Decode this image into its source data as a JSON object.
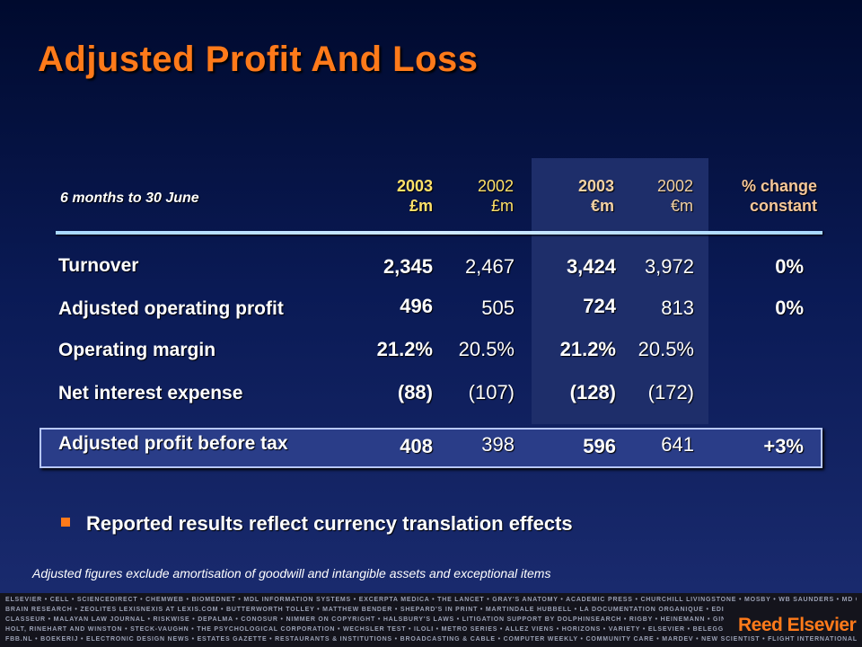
{
  "title": "Adjusted Profit And Loss",
  "period_label": "6 months to 30 June",
  "columns": [
    {
      "year": "2003",
      "unit": "£m"
    },
    {
      "year": "2002",
      "unit": "£m"
    },
    {
      "year": "2003",
      "unit": "€m"
    },
    {
      "year": "2002",
      "unit": "€m"
    },
    {
      "year": "% change",
      "unit": "constant"
    }
  ],
  "rows": [
    {
      "label": "Turnover",
      "values": [
        "2,345",
        "2,467",
        "3,424",
        "3,972",
        "0%"
      ]
    },
    {
      "label": "Adjusted operating profit",
      "values": [
        "496",
        "505",
        "724",
        "813",
        "0%"
      ]
    },
    {
      "label": "Operating margin",
      "values": [
        "21.2%",
        "20.5%",
        "21.2%",
        "20.5%",
        ""
      ]
    },
    {
      "label": "Net interest expense",
      "values": [
        "(88)",
        "(107)",
        "(128)",
        "(172)",
        ""
      ]
    }
  ],
  "highlight_row": {
    "label": "Adjusted profit before tax",
    "values": [
      "408",
      "398",
      "596",
      "641",
      "+3%"
    ]
  },
  "bullet": "Reported results reflect currency translation effects",
  "footnote": "Adjusted figures exclude amortisation of goodwill and intangible assets and exceptional items",
  "footer_lines": [
    "ELSEVIER • CELL • SCIENCEDIRECT • CHEMWEB • BIOMEDNET • MDL INFORMATION SYSTEMS • EXCERPTA MEDICA • THE LANCET • GRAY'S ANATOMY • ACADEMIC PRESS • CHURCHILL LIVINGSTONE • MOSBY • WB SAUNDERS • MD CONSULT",
    "BRAIN RESEARCH • ZEOLITES LEXISNEXIS AT LEXIS.COM • BUTTERWORTH TOLLEY • MATTHEW BENDER • SHEPARD'S IN PRINT • MARTINDALE HUBBELL • LA DOCUMENTATION ORGANIQUE • EDITIONS DU JURIS",
    "CLASSEUR • MALAYAN LAW JOURNAL • RISKWISE • DEPALMA • CONOSUR • NIMMER ON COPYRIGHT • HALSBURY'S LAWS • LITIGATION SUPPORT BY DOLPHINSEARCH • RIGBY • HEINEMANN • GINN • GREENWOOD",
    "HOLT, RINEHART AND WINSTON • STECK-VAUGHN • THE PSYCHOLOGICAL CORPORATION • WECHSLER TEST • ILOLI • METRO SERIES • ALLEZ VIENS • HORIZONS • VARIETY • ELSEVIER • BELEGGERS BELANGEN",
    "FBB.NL • BOEKERIJ • ELECTRONIC DESIGN NEWS • ESTATES GAZETTE • RESTAURANTS & INSTITUTIONS • BROADCASTING & CABLE • COMPUTER WEEKLY • COMMUNITY CARE • MARDEV • NEW SCIENTIST • FLIGHT INTERNATIONAL"
  ],
  "brand": "Reed Elsevier",
  "colors": {
    "accent": "#ff7a1a",
    "gbp_header": "#ffe26a",
    "eur_header": "#f3d2a4",
    "pct_header": "#f6c79a"
  }
}
